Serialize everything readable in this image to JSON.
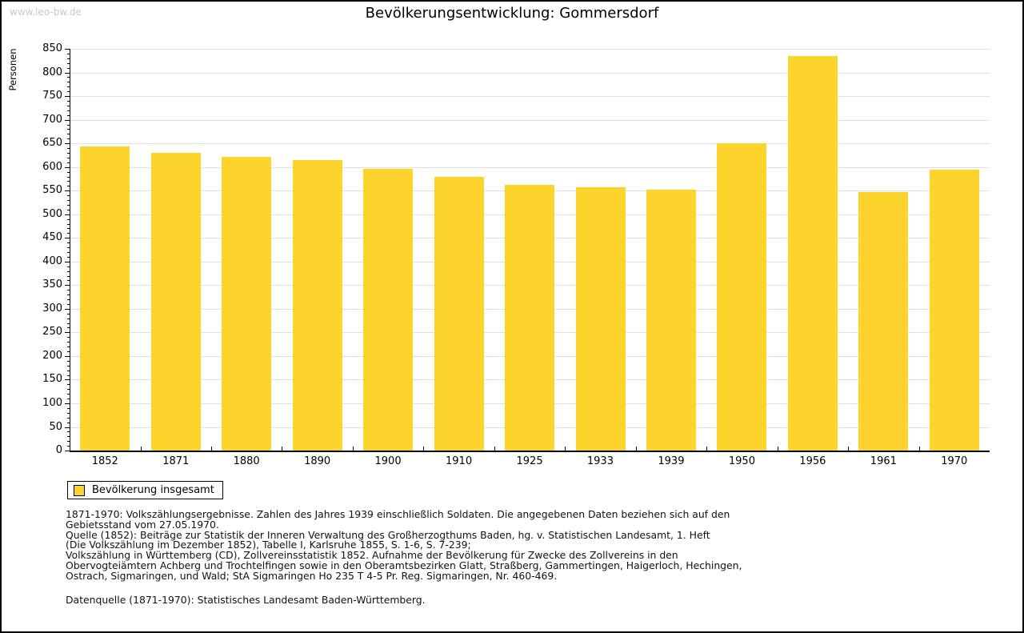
{
  "watermark": "www.leo-bw.de",
  "title": "Bevölkerungsentwicklung: Gommersdorf",
  "legend": {
    "label": "Bevölkerung insgesamt"
  },
  "colors": {
    "bar": "#FDD42C",
    "grid": "#e0e0e0",
    "axis": "#000000",
    "watermark": "#c8c8c8"
  },
  "chart_data": {
    "type": "bar",
    "title": "Bevölkerungsentwicklung: Gommersdorf",
    "ylabel": "Personen",
    "xlabel": "",
    "categories": [
      "1852",
      "1871",
      "1880",
      "1890",
      "1900",
      "1910",
      "1925",
      "1933",
      "1939",
      "1950",
      "1956",
      "1961",
      "1970"
    ],
    "series": [
      {
        "name": "Bevölkerung insgesamt",
        "values": [
          643,
          630,
          622,
          614,
          596,
          580,
          562,
          557,
          552,
          650,
          835,
          547,
          594
        ]
      }
    ],
    "ylim": [
      0,
      850
    ],
    "ytick_step": 50,
    "ytick_minor_step": 10,
    "grid": "horizontal",
    "legend_position": "bottom-left"
  },
  "notes": {
    "lines": [
      "1871-1970: Volkszählungsergebnisse. Zahlen des Jahres 1939 einschließlich Soldaten. Die angegebenen Daten beziehen sich auf den",
      "Gebietsstand vom 27.05.1970.",
      "Quelle (1852): Beiträge zur Statistik der Inneren Verwaltung des Großherzogthums Baden, hg. v. Statistischen Landesamt, 1. Heft",
      "(Die Volkszählung im Dezember 1852), Tabelle I, Karlsruhe 1855, S. 1-6, S. 7-239;",
      "Volkszählung in Württemberg (CD), Zollvereinsstatistik 1852. Aufnahme der Bevölkerung für Zwecke des Zollvereins in den",
      "Obervogteiämtern Achberg und Trochtelfingen sowie in den Oberamtsbezirken Glatt, Straßberg, Gammertingen, Haigerloch, Hechingen,",
      "Ostrach, Sigmaringen, und Wald; StA Sigmaringen Ho 235 T 4-5 Pr. Reg. Sigmaringen, Nr. 460-469."
    ],
    "source": "Datenquelle (1871-1970): Statistisches Landesamt Baden-Württemberg."
  }
}
